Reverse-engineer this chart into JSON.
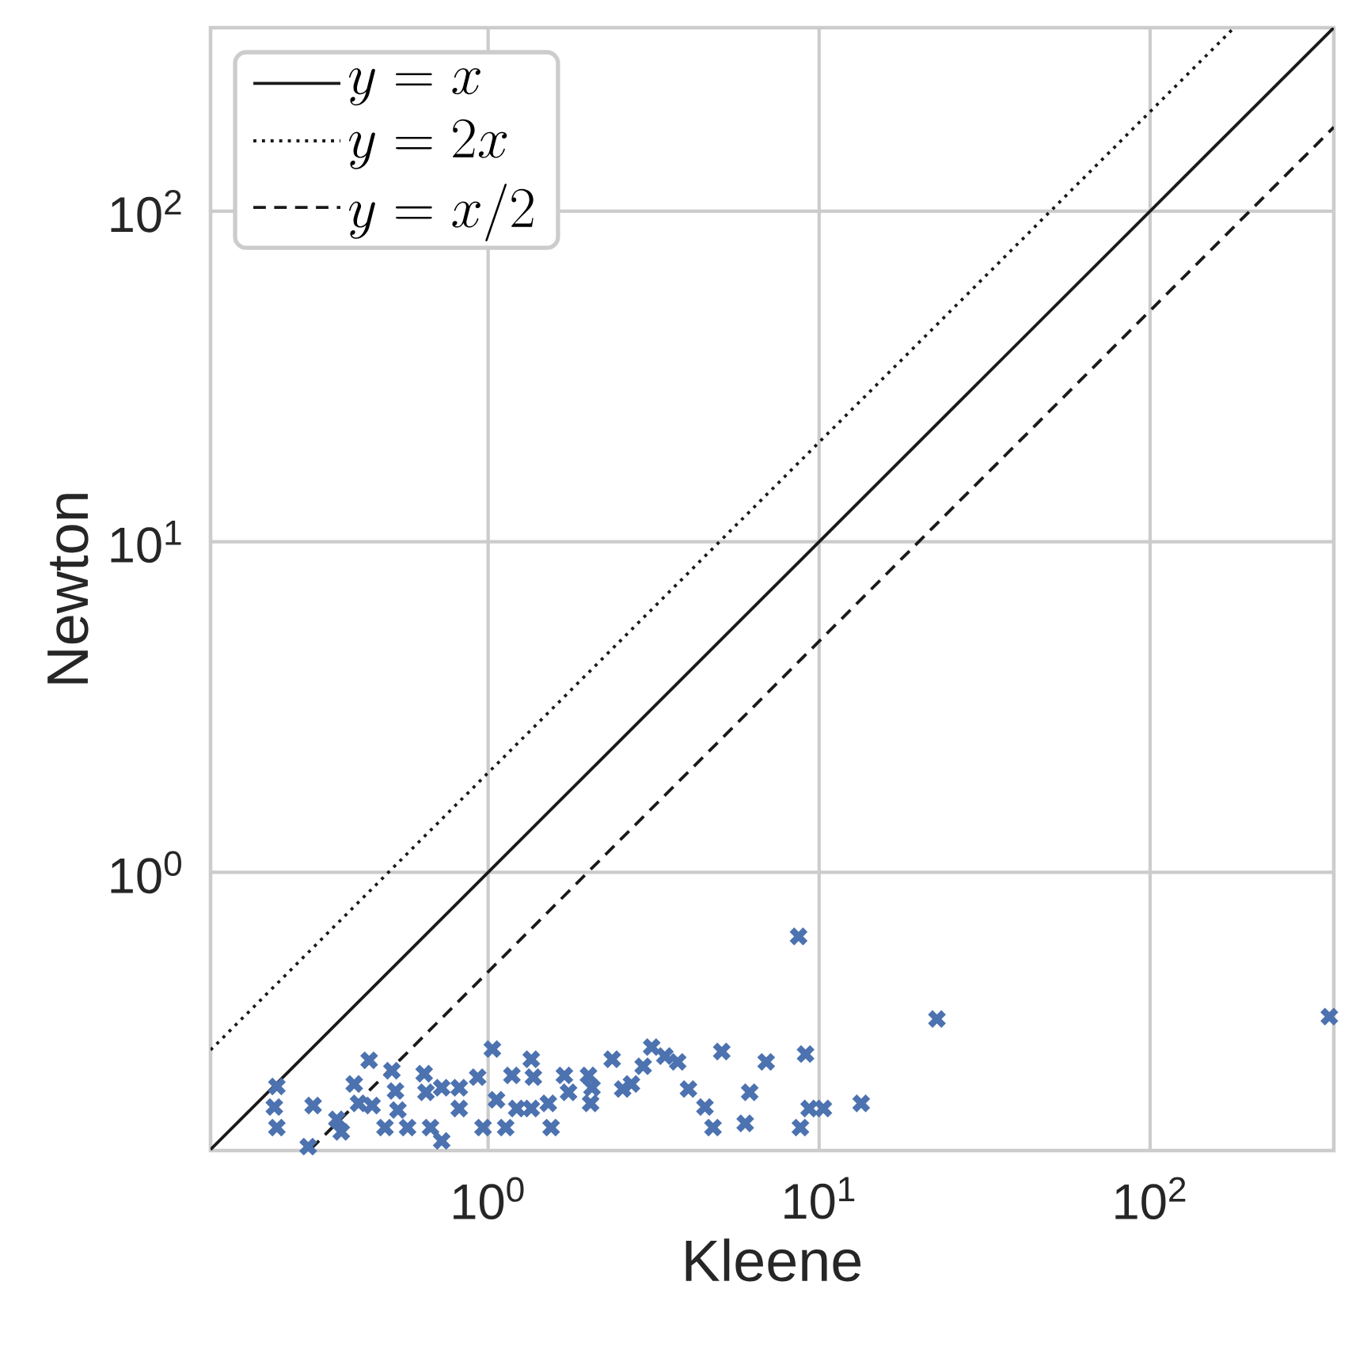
{
  "chart_data": {
    "type": "scatter",
    "xlabel": "Kleene",
    "ylabel": "Newton",
    "log": "xy",
    "grid": true,
    "legend": "top left",
    "xlim": [
      0.145,
      359
    ],
    "ylim": [
      0.144,
      359
    ],
    "xticks": [
      {
        "value": 1,
        "label": "10$^{0}$"
      },
      {
        "value": 10,
        "label": "10$^{1}$"
      },
      {
        "value": 100,
        "label": "10$^{2}$"
      }
    ],
    "yticks": [
      {
        "value": 1,
        "label": "10$^{0}$"
      },
      {
        "value": 10,
        "label": "10$^{1}$"
      },
      {
        "value": 100,
        "label": "10$^{2}$"
      }
    ],
    "series": [
      {
        "type": "line",
        "name": "y = x",
        "color": "#1a1a1a",
        "line_style": "solid",
        "x": [
          0.145,
          359
        ],
        "values": [
          0.145,
          359
        ]
      },
      {
        "type": "line",
        "name": "y = 2x",
        "color": "#1a1a1a",
        "line_style": "dotted",
        "x": [
          0.145,
          179.5
        ],
        "values": [
          0.29,
          359
        ]
      },
      {
        "type": "line",
        "name": "y = x/2",
        "color": "#1a1a1a",
        "line_style": "dashed",
        "x": [
          0.29,
          359
        ],
        "values": [
          0.145,
          179.5
        ]
      },
      {
        "color": "#4c72b0",
        "marker": "cross",
        "x": [
          0.23,
          0.226,
          0.23,
          0.296,
          0.286,
          0.349,
          0.36,
          0.394,
          0.406,
          0.437,
          0.446,
          0.488,
          0.512,
          0.525,
          0.534,
          0.571,
          0.641,
          0.649,
          0.67,
          0.724,
          0.724,
          0.818,
          0.818,
          0.93,
          0.965,
          1.03,
          1.06,
          1.13,
          1.18,
          1.22,
          1.35,
          1.37,
          1.35,
          1.52,
          1.55,
          1.7,
          1.75,
          2.01,
          2.04,
          2.06,
          2.37,
          2.55,
          2.71,
          2.94,
          3.12,
          3.42,
          3.74,
          4.03,
          4.52,
          4.78,
          5.08,
          5.98,
          6.17,
          6.92,
          8.67,
          8.78,
          9.1,
          9.33,
          10.3,
          13.4,
          22.7,
          348
        ],
        "values": [
          0.225,
          0.195,
          0.169,
          0.197,
          0.148,
          0.179,
          0.164,
          0.229,
          0.2,
          0.27,
          0.197,
          0.169,
          0.251,
          0.218,
          0.191,
          0.169,
          0.246,
          0.216,
          0.169,
          0.154,
          0.223,
          0.223,
          0.193,
          0.24,
          0.169,
          0.292,
          0.205,
          0.169,
          0.243,
          0.193,
          0.272,
          0.24,
          0.193,
          0.2,
          0.169,
          0.243,
          0.216,
          0.243,
          0.2,
          0.223,
          0.272,
          0.221,
          0.229,
          0.259,
          0.296,
          0.278,
          0.267,
          0.221,
          0.195,
          0.169,
          0.287,
          0.174,
          0.216,
          0.267,
          0.64,
          0.169,
          0.282,
          0.193,
          0.193,
          0.2,
          0.36,
          0.366
        ]
      }
    ]
  }
}
